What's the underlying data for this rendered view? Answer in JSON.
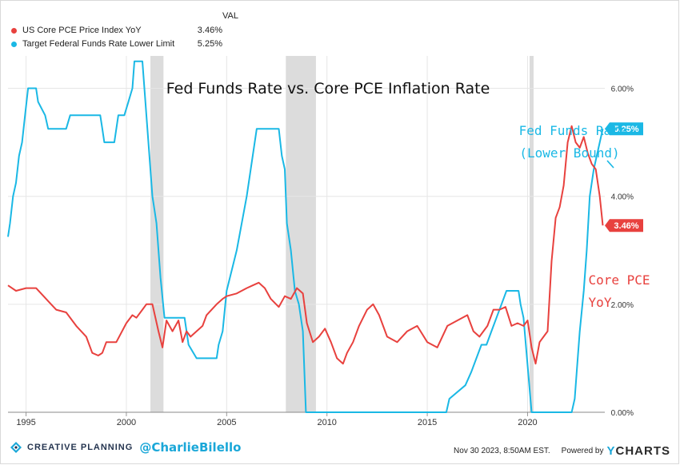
{
  "legend": {
    "header": "VAL",
    "items": [
      {
        "label": "US Core PCE Price Index YoY",
        "value": "3.46%",
        "color": "#e8413e"
      },
      {
        "label": "Target Federal Funds Rate Lower Limit",
        "value": "5.25%",
        "color": "#1ab8e5"
      }
    ]
  },
  "footer": {
    "brand": "CREATIVE PLANNING",
    "handle": "@CharlieBilello",
    "timestamp": "Nov 30 2023, 8:50AM EST.",
    "powered_by": "Powered by",
    "ycharts_y": "Y",
    "ycharts_rest": "CHARTS"
  },
  "chart_data": {
    "type": "line",
    "title": "Fed Funds Rate vs. Core PCE Inflation Rate",
    "y_unit": "%",
    "ylim": [
      0,
      6.6
    ],
    "yticks": [
      "0.00%",
      "2.00%",
      "4.00%",
      "6.00%"
    ],
    "ytick_values": [
      0,
      2,
      4,
      6
    ],
    "xticks": [
      "1995",
      "2000",
      "2005",
      "2010",
      "2015",
      "2020"
    ],
    "xtick_values": [
      1995,
      2000,
      2005,
      2010,
      2015,
      2020
    ],
    "xlim": [
      1994.1,
      2023.85
    ],
    "grid": true,
    "recessions": [
      [
        2001.2,
        2001.85
      ],
      [
        2007.95,
        2009.45
      ],
      [
        2020.1,
        2020.3
      ]
    ],
    "annotations": [
      {
        "text": "Fed Funds Rate",
        "color": "#1ab8e5"
      },
      {
        "text": "(Lower Bound)",
        "color": "#1ab8e5"
      },
      {
        "text": "Core PCE",
        "color": "#e8413e"
      },
      {
        "text": "YoY",
        "color": "#e8413e"
      }
    ],
    "end_labels": [
      {
        "series": 0,
        "text": "3.46%",
        "value": 3.46
      },
      {
        "series": 1,
        "text": "5.25%",
        "value": 5.25
      }
    ],
    "series": [
      {
        "name": "US Core PCE Price Index YoY",
        "color": "#e8413e",
        "x": [
          1994.1,
          1994.5,
          1995.0,
          1995.5,
          1996.0,
          1996.5,
          1997.0,
          1997.5,
          1998.0,
          1998.3,
          1998.6,
          1998.8,
          1999.0,
          1999.5,
          2000.0,
          2000.3,
          2000.5,
          2000.8,
          2001.0,
          2001.3,
          2001.6,
          2001.8,
          2002.0,
          2002.3,
          2002.6,
          2002.8,
          2003.0,
          2003.2,
          2003.5,
          2003.8,
          2004.0,
          2004.5,
          2004.8,
          2005.0,
          2005.5,
          2006.0,
          2006.3,
          2006.6,
          2006.9,
          2007.2,
          2007.6,
          2007.9,
          2008.2,
          2008.5,
          2008.8,
          2009.0,
          2009.3,
          2009.6,
          2009.9,
          2010.2,
          2010.5,
          2010.8,
          2011.0,
          2011.3,
          2011.6,
          2012.0,
          2012.3,
          2012.6,
          2013.0,
          2013.5,
          2014.0,
          2014.5,
          2015.0,
          2015.5,
          2016.0,
          2016.5,
          2017.0,
          2017.3,
          2017.6,
          2018.0,
          2018.3,
          2018.6,
          2018.9,
          2019.2,
          2019.5,
          2019.8,
          2020.0,
          2020.2,
          2020.4,
          2020.6,
          2020.8,
          2021.0,
          2021.2,
          2021.4,
          2021.6,
          2021.8,
          2022.0,
          2022.2,
          2022.4,
          2022.6,
          2022.8,
          2023.0,
          2023.2,
          2023.4,
          2023.6,
          2023.75
        ],
        "values": [
          2.35,
          2.25,
          2.3,
          2.3,
          2.1,
          1.9,
          1.85,
          1.6,
          1.4,
          1.1,
          1.05,
          1.1,
          1.3,
          1.3,
          1.65,
          1.8,
          1.75,
          1.9,
          2.0,
          2.0,
          1.5,
          1.2,
          1.7,
          1.5,
          1.7,
          1.3,
          1.5,
          1.4,
          1.5,
          1.6,
          1.8,
          2.0,
          2.1,
          2.15,
          2.2,
          2.3,
          2.35,
          2.4,
          2.3,
          2.1,
          1.95,
          2.15,
          2.1,
          2.3,
          2.2,
          1.65,
          1.3,
          1.4,
          1.55,
          1.3,
          1.0,
          0.9,
          1.1,
          1.3,
          1.6,
          1.9,
          2.0,
          1.8,
          1.4,
          1.3,
          1.5,
          1.6,
          1.3,
          1.2,
          1.6,
          1.7,
          1.8,
          1.5,
          1.4,
          1.6,
          1.9,
          1.9,
          1.95,
          1.6,
          1.65,
          1.6,
          1.7,
          1.2,
          0.9,
          1.3,
          1.4,
          1.5,
          2.8,
          3.6,
          3.8,
          4.2,
          5.0,
          5.3,
          5.0,
          4.9,
          5.1,
          4.8,
          4.6,
          4.5,
          4.0,
          3.46
        ]
      },
      {
        "name": "Target Federal Funds Rate Lower Limit",
        "color": "#1ab8e5",
        "x": [
          1994.1,
          1994.2,
          1994.35,
          1994.5,
          1994.65,
          1994.8,
          1994.95,
          1995.1,
          1995.5,
          1995.6,
          1995.95,
          1996.1,
          1997.0,
          1997.2,
          1998.7,
          1998.8,
          1998.9,
          1999.4,
          1999.5,
          1999.6,
          1999.9,
          2000.1,
          2000.3,
          2000.4,
          2000.8,
          2001.0,
          2001.1,
          2001.2,
          2001.3,
          2001.4,
          2001.5,
          2001.6,
          2001.7,
          2001.9,
          2002.9,
          2003.1,
          2003.5,
          2004.5,
          2004.6,
          2004.8,
          2005.0,
          2005.5,
          2006.0,
          2006.5,
          2007.6,
          2007.75,
          2007.9,
          2008.0,
          2008.2,
          2008.4,
          2008.6,
          2008.8,
          2008.95,
          2015.95,
          2016.1,
          2016.9,
          2017.2,
          2017.45,
          2017.7,
          2017.95,
          2018.2,
          2018.45,
          2018.7,
          2018.95,
          2019.55,
          2019.65,
          2019.8,
          2020.2,
          2020.3,
          2022.2,
          2022.35,
          2022.45,
          2022.6,
          2022.8,
          2022.95,
          2023.1,
          2023.3,
          2023.6,
          2023.75
        ],
        "values": [
          3.25,
          3.5,
          4.0,
          4.25,
          4.75,
          5.0,
          5.5,
          6.0,
          6.0,
          5.75,
          5.5,
          5.25,
          5.25,
          5.5,
          5.5,
          5.25,
          5.0,
          5.0,
          5.25,
          5.5,
          5.5,
          5.75,
          6.0,
          6.5,
          6.5,
          5.5,
          5.0,
          4.5,
          4.0,
          3.75,
          3.5,
          3.0,
          2.5,
          1.75,
          1.75,
          1.25,
          1.0,
          1.0,
          1.25,
          1.5,
          2.25,
          3.0,
          4.0,
          5.25,
          5.25,
          4.75,
          4.5,
          3.5,
          3.0,
          2.25,
          2.0,
          1.5,
          0.0,
          0.0,
          0.25,
          0.5,
          0.75,
          1.0,
          1.25,
          1.25,
          1.5,
          1.75,
          2.0,
          2.25,
          2.25,
          2.0,
          1.75,
          0.0,
          0.0,
          0.0,
          0.25,
          0.75,
          1.5,
          2.25,
          3.0,
          4.0,
          4.5,
          5.0,
          5.25
        ]
      }
    ]
  }
}
